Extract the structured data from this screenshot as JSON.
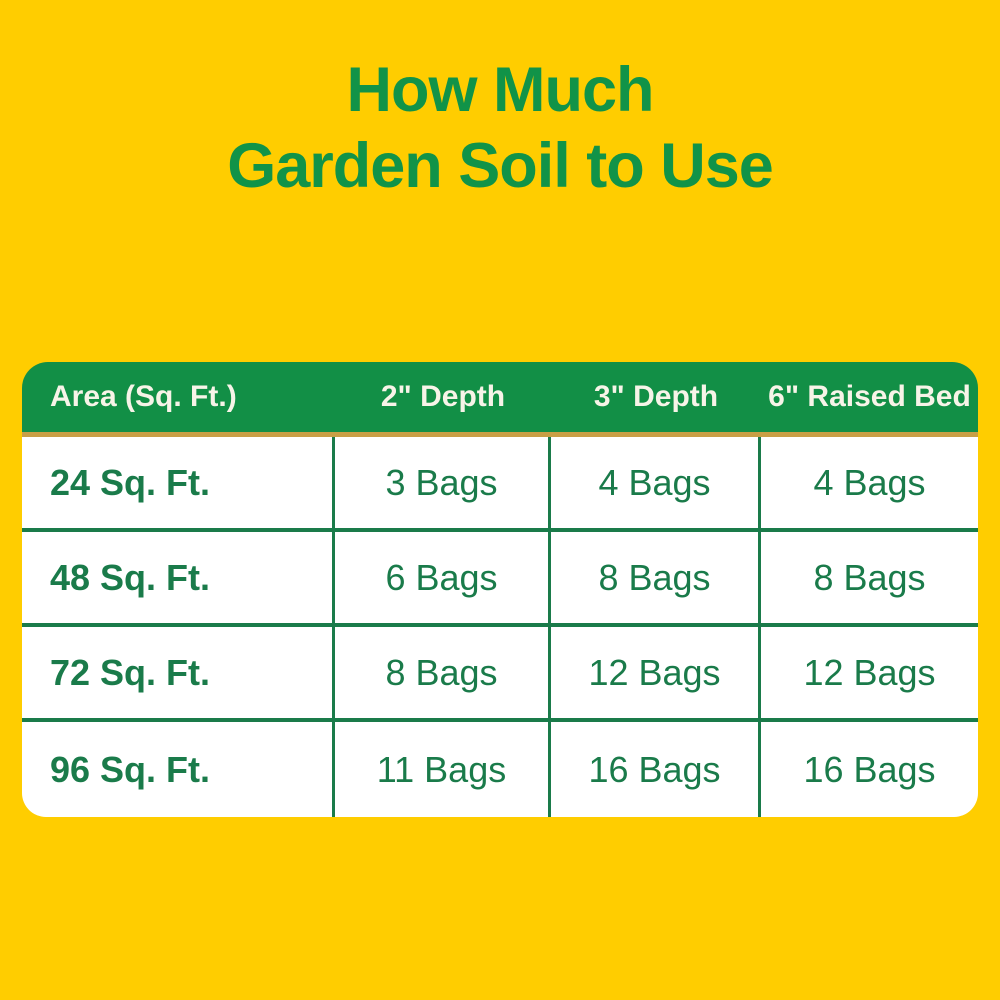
{
  "title": {
    "line1": "How Much",
    "line2": "Garden Soil to Use"
  },
  "chart_data": {
    "type": "table",
    "title": "How Much Garden Soil to Use",
    "columns": [
      "Area (Sq. Ft.)",
      "2\" Depth",
      "3\" Depth",
      "6\" Raised Bed"
    ],
    "rows": [
      [
        "24 Sq. Ft.",
        "3 Bags",
        "4 Bags",
        "4 Bags"
      ],
      [
        "48 Sq. Ft.",
        "6 Bags",
        "8 Bags",
        "8 Bags"
      ],
      [
        "72 Sq. Ft.",
        "8 Bags",
        "12 Bags",
        "12 Bags"
      ],
      [
        "96 Sq. Ft.",
        "11 Bags",
        "16 Bags",
        "16 Bags"
      ]
    ],
    "layout": {
      "header_row": "green with white text, rounded top corners",
      "body": "white with green text and green gridlines, rounded bottom corners",
      "first_column_alignment": "left",
      "value_columns_alignment": "center"
    }
  },
  "colors": {
    "background": "#FFCD00",
    "title_green": "#119348",
    "header_green": "#128F46",
    "header_text": "#F7F4E8",
    "gold_divider": "#C99F45",
    "cell_green": "#1A7B4A",
    "body_white": "#FFFFFF"
  }
}
